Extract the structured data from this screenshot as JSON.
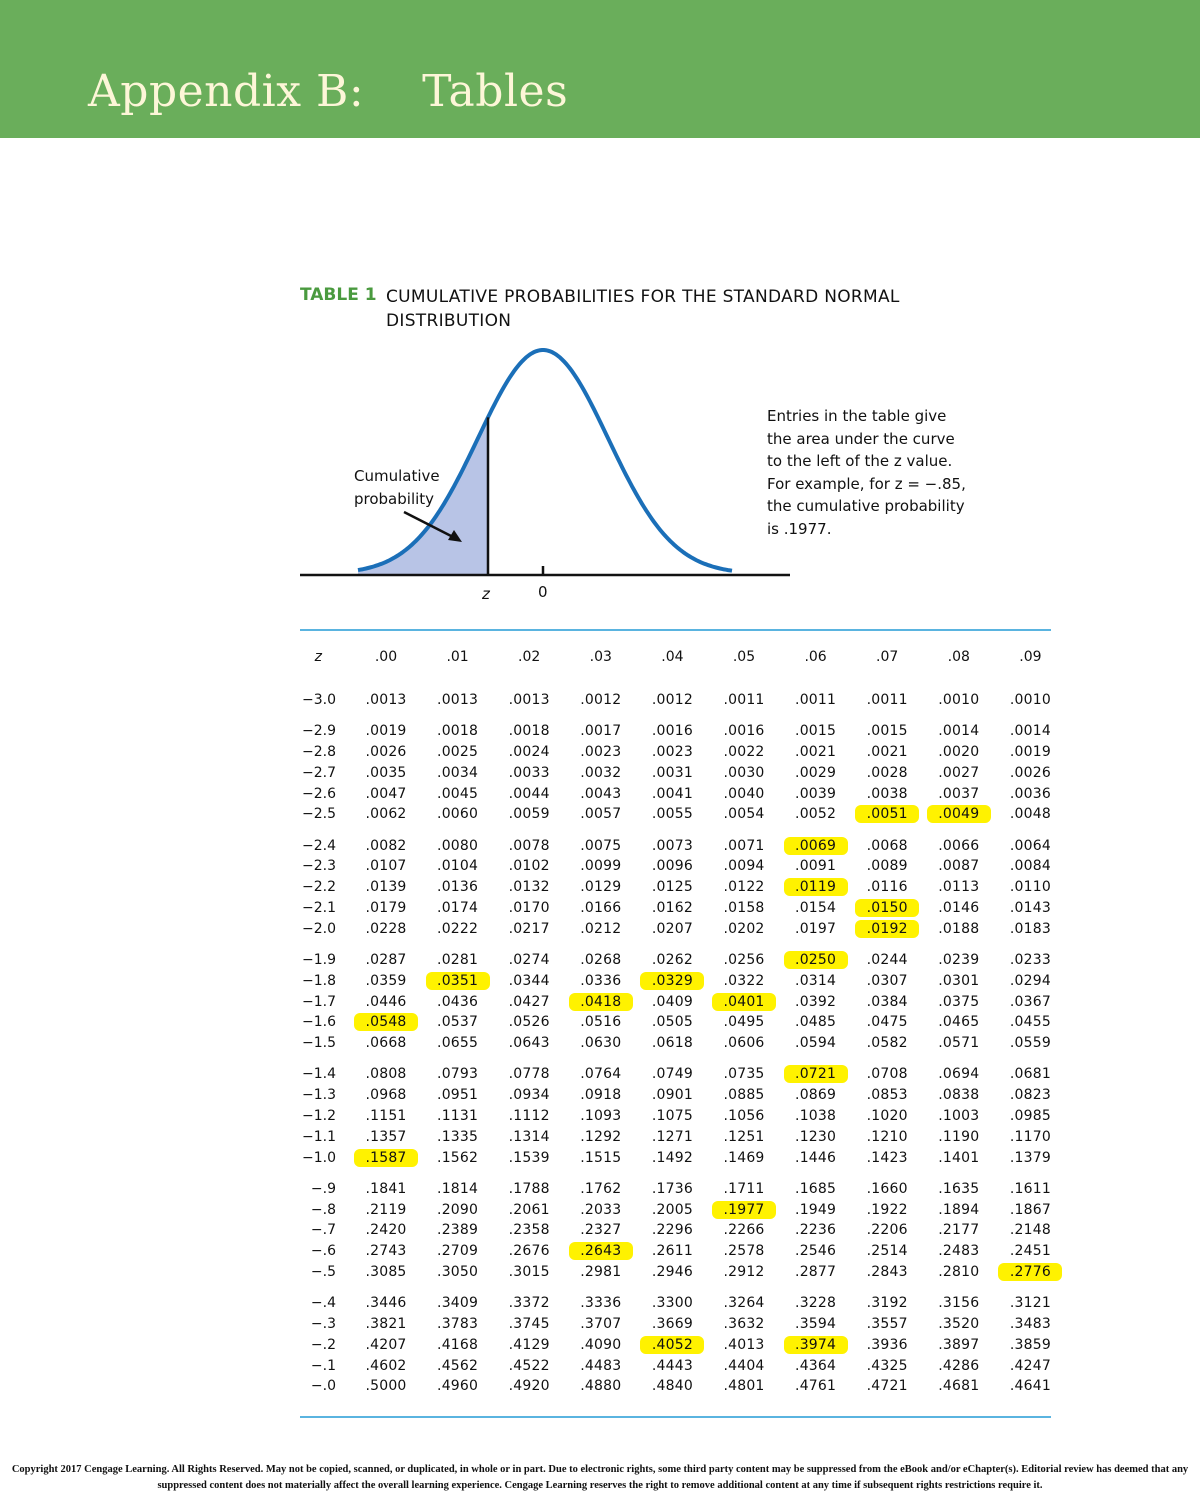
{
  "banner": {
    "title": "Appendix B:    Tables"
  },
  "table": {
    "label": "TABLE 1",
    "title": "CUMULATIVE PROBABILITIES FOR THE STANDARD NORMAL DISTRIBUTION",
    "figure": {
      "cumulative_label": "Cumulative probability",
      "z_label": "z",
      "zero_label": "0",
      "note": "Entries in the table give the area under the curve to the left of the z value. For example, for z = −.85, the cumulative probability is .1977."
    },
    "z_header": "z",
    "columns": [
      ".00",
      ".01",
      ".02",
      ".03",
      ".04",
      ".05",
      ".06",
      ".07",
      ".08",
      ".09"
    ],
    "highlight_color": "#fff200",
    "groups": [
      [
        {
          "z": "−3.0",
          "v": [
            ".0013",
            ".0013",
            ".0013",
            ".0012",
            ".0012",
            ".0011",
            ".0011",
            ".0011",
            ".0010",
            ".0010"
          ],
          "hl": []
        }
      ],
      [
        {
          "z": "−2.9",
          "v": [
            ".0019",
            ".0018",
            ".0018",
            ".0017",
            ".0016",
            ".0016",
            ".0015",
            ".0015",
            ".0014",
            ".0014"
          ],
          "hl": []
        },
        {
          "z": "−2.8",
          "v": [
            ".0026",
            ".0025",
            ".0024",
            ".0023",
            ".0023",
            ".0022",
            ".0021",
            ".0021",
            ".0020",
            ".0019"
          ],
          "hl": []
        },
        {
          "z": "−2.7",
          "v": [
            ".0035",
            ".0034",
            ".0033",
            ".0032",
            ".0031",
            ".0030",
            ".0029",
            ".0028",
            ".0027",
            ".0026"
          ],
          "hl": []
        },
        {
          "z": "−2.6",
          "v": [
            ".0047",
            ".0045",
            ".0044",
            ".0043",
            ".0041",
            ".0040",
            ".0039",
            ".0038",
            ".0037",
            ".0036"
          ],
          "hl": []
        },
        {
          "z": "−2.5",
          "v": [
            ".0062",
            ".0060",
            ".0059",
            ".0057",
            ".0055",
            ".0054",
            ".0052",
            ".0051",
            ".0049",
            ".0048"
          ],
          "hl": [
            7,
            8
          ]
        }
      ],
      [
        {
          "z": "−2.4",
          "v": [
            ".0082",
            ".0080",
            ".0078",
            ".0075",
            ".0073",
            ".0071",
            ".0069",
            ".0068",
            ".0066",
            ".0064"
          ],
          "hl": [
            6
          ]
        },
        {
          "z": "−2.3",
          "v": [
            ".0107",
            ".0104",
            ".0102",
            ".0099",
            ".0096",
            ".0094",
            ".0091",
            ".0089",
            ".0087",
            ".0084"
          ],
          "hl": []
        },
        {
          "z": "−2.2",
          "v": [
            ".0139",
            ".0136",
            ".0132",
            ".0129",
            ".0125",
            ".0122",
            ".0119",
            ".0116",
            ".0113",
            ".0110"
          ],
          "hl": [
            6
          ]
        },
        {
          "z": "−2.1",
          "v": [
            ".0179",
            ".0174",
            ".0170",
            ".0166",
            ".0162",
            ".0158",
            ".0154",
            ".0150",
            ".0146",
            ".0143"
          ],
          "hl": [
            7
          ]
        },
        {
          "z": "−2.0",
          "v": [
            ".0228",
            ".0222",
            ".0217",
            ".0212",
            ".0207",
            ".0202",
            ".0197",
            ".0192",
            ".0188",
            ".0183"
          ],
          "hl": [
            7
          ]
        }
      ],
      [
        {
          "z": "−1.9",
          "v": [
            ".0287",
            ".0281",
            ".0274",
            ".0268",
            ".0262",
            ".0256",
            ".0250",
            ".0244",
            ".0239",
            ".0233"
          ],
          "hl": [
            6
          ]
        },
        {
          "z": "−1.8",
          "v": [
            ".0359",
            ".0351",
            ".0344",
            ".0336",
            ".0329",
            ".0322",
            ".0314",
            ".0307",
            ".0301",
            ".0294"
          ],
          "hl": [
            1,
            4
          ]
        },
        {
          "z": "−1.7",
          "v": [
            ".0446",
            ".0436",
            ".0427",
            ".0418",
            ".0409",
            ".0401",
            ".0392",
            ".0384",
            ".0375",
            ".0367"
          ],
          "hl": [
            3,
            5
          ]
        },
        {
          "z": "−1.6",
          "v": [
            ".0548",
            ".0537",
            ".0526",
            ".0516",
            ".0505",
            ".0495",
            ".0485",
            ".0475",
            ".0465",
            ".0455"
          ],
          "hl": [
            0
          ]
        },
        {
          "z": "−1.5",
          "v": [
            ".0668",
            ".0655",
            ".0643",
            ".0630",
            ".0618",
            ".0606",
            ".0594",
            ".0582",
            ".0571",
            ".0559"
          ],
          "hl": []
        }
      ],
      [
        {
          "z": "−1.4",
          "v": [
            ".0808",
            ".0793",
            ".0778",
            ".0764",
            ".0749",
            ".0735",
            ".0721",
            ".0708",
            ".0694",
            ".0681"
          ],
          "hl": [
            6
          ]
        },
        {
          "z": "−1.3",
          "v": [
            ".0968",
            ".0951",
            ".0934",
            ".0918",
            ".0901",
            ".0885",
            ".0869",
            ".0853",
            ".0838",
            ".0823"
          ],
          "hl": []
        },
        {
          "z": "−1.2",
          "v": [
            ".1151",
            ".1131",
            ".1112",
            ".1093",
            ".1075",
            ".1056",
            ".1038",
            ".1020",
            ".1003",
            ".0985"
          ],
          "hl": []
        },
        {
          "z": "−1.1",
          "v": [
            ".1357",
            ".1335",
            ".1314",
            ".1292",
            ".1271",
            ".1251",
            ".1230",
            ".1210",
            ".1190",
            ".1170"
          ],
          "hl": []
        },
        {
          "z": "−1.0",
          "v": [
            ".1587",
            ".1562",
            ".1539",
            ".1515",
            ".1492",
            ".1469",
            ".1446",
            ".1423",
            ".1401",
            ".1379"
          ],
          "hl": [
            0
          ]
        }
      ],
      [
        {
          "z": "−.9",
          "v": [
            ".1841",
            ".1814",
            ".1788",
            ".1762",
            ".1736",
            ".1711",
            ".1685",
            ".1660",
            ".1635",
            ".1611"
          ],
          "hl": []
        },
        {
          "z": "−.8",
          "v": [
            ".2119",
            ".2090",
            ".2061",
            ".2033",
            ".2005",
            ".1977",
            ".1949",
            ".1922",
            ".1894",
            ".1867"
          ],
          "hl": [
            5
          ]
        },
        {
          "z": "−.7",
          "v": [
            ".2420",
            ".2389",
            ".2358",
            ".2327",
            ".2296",
            ".2266",
            ".2236",
            ".2206",
            ".2177",
            ".2148"
          ],
          "hl": []
        },
        {
          "z": "−.6",
          "v": [
            ".2743",
            ".2709",
            ".2676",
            ".2643",
            ".2611",
            ".2578",
            ".2546",
            ".2514",
            ".2483",
            ".2451"
          ],
          "hl": [
            3
          ]
        },
        {
          "z": "−.5",
          "v": [
            ".3085",
            ".3050",
            ".3015",
            ".2981",
            ".2946",
            ".2912",
            ".2877",
            ".2843",
            ".2810",
            ".2776"
          ],
          "hl": [
            9
          ]
        }
      ],
      [
        {
          "z": "−.4",
          "v": [
            ".3446",
            ".3409",
            ".3372",
            ".3336",
            ".3300",
            ".3264",
            ".3228",
            ".3192",
            ".3156",
            ".3121"
          ],
          "hl": []
        },
        {
          "z": "−.3",
          "v": [
            ".3821",
            ".3783",
            ".3745",
            ".3707",
            ".3669",
            ".3632",
            ".3594",
            ".3557",
            ".3520",
            ".3483"
          ],
          "hl": []
        },
        {
          "z": "−.2",
          "v": [
            ".4207",
            ".4168",
            ".4129",
            ".4090",
            ".4052",
            ".4013",
            ".3974",
            ".3936",
            ".3897",
            ".3859"
          ],
          "hl": [
            4,
            6
          ]
        },
        {
          "z": "−.1",
          "v": [
            ".4602",
            ".4562",
            ".4522",
            ".4483",
            ".4443",
            ".4404",
            ".4364",
            ".4325",
            ".4286",
            ".4247"
          ],
          "hl": []
        },
        {
          "z": "−.0",
          "v": [
            ".5000",
            ".4960",
            ".4920",
            ".4880",
            ".4840",
            ".4801",
            ".4761",
            ".4721",
            ".4681",
            ".4641"
          ],
          "hl": []
        }
      ]
    ]
  },
  "footer": {
    "copyright": "Copyright 2017 Cengage Learning. All Rights Reserved. May not be copied, scanned, or duplicated, in whole or in part. Due to electronic rights, some third party content may be suppressed from the eBook and/or eChapter(s). Editorial review has deemed that any suppressed content does not materially affect the overall learning experience. Cengage Learning reserves the right to remove additional content at any time if subsequent rights restrictions require it."
  }
}
